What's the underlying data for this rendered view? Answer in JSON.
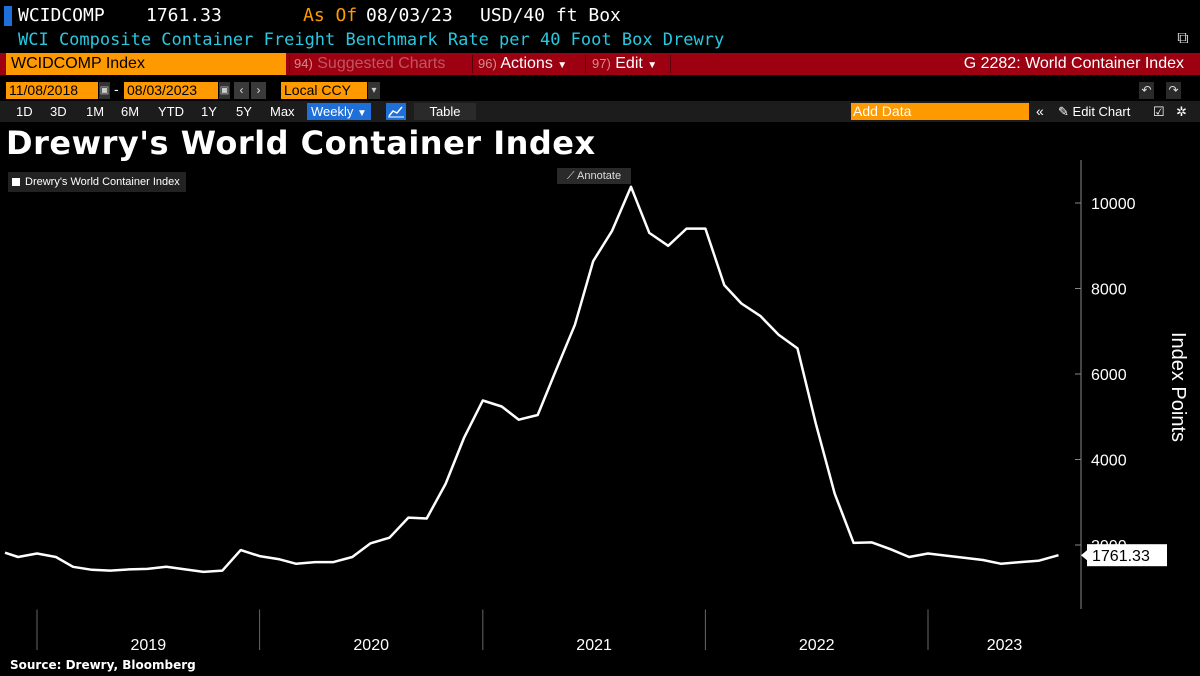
{
  "header": {
    "ticker": "WCIDCOMP",
    "price": "1761.33",
    "as_of_label": "As Of",
    "as_of_date": "08/03/23",
    "unit": "USD/40 ft Box",
    "description": "WCI Composite Container Freight Benchmark Rate per 40 Foot Box Drewry"
  },
  "commandbar": {
    "ticker_field": "WCIDCOMP Index",
    "suggested_num": "94)",
    "suggested_label": "Suggested Charts",
    "actions_num": "96)",
    "actions_label": "Actions",
    "edit_num": "97)",
    "edit_label": "Edit",
    "function_label": "G 2282: World Container Index"
  },
  "range": {
    "start_date": "11/08/2018",
    "dash": "-",
    "end_date": "08/03/2023",
    "currency": "Local CCY"
  },
  "toolbar": {
    "periods": [
      "1D",
      "3D",
      "1M",
      "6M",
      "YTD",
      "1Y",
      "5Y",
      "Max"
    ],
    "frequency": "Weekly",
    "table_label": "Table",
    "add_data_placeholder": "Add Data",
    "edit_chart_label": "Edit Chart"
  },
  "chart": {
    "title": "Drewry's World Container Index",
    "legend": "Drewry's World Container Index",
    "annotate_label": "Annotate",
    "last_value_label": "1761.33",
    "source": "Source: Drewry, Bloomberg",
    "line_color": "#ffffff"
  },
  "chart_data": {
    "type": "line",
    "title": "Drewry's World Container Index",
    "ylabel": "Index Points",
    "xlabel": "",
    "ylim": [
      500,
      10700
    ],
    "yticks": [
      2000,
      4000,
      6000,
      8000,
      10000
    ],
    "x_tick_labels": [
      "2019",
      "2020",
      "2021",
      "2022",
      "2023"
    ],
    "grid": false,
    "legend_position": "top-left",
    "series": [
      {
        "name": "Drewry's World Container Index",
        "x": [
          "2018-11-08",
          "2018-12-01",
          "2019-01-01",
          "2019-02-01",
          "2019-03-01",
          "2019-04-01",
          "2019-05-01",
          "2019-06-01",
          "2019-07-01",
          "2019-08-01",
          "2019-09-01",
          "2019-10-01",
          "2019-11-01",
          "2019-12-01",
          "2020-01-01",
          "2020-02-01",
          "2020-03-01",
          "2020-04-01",
          "2020-05-01",
          "2020-06-01",
          "2020-07-01",
          "2020-08-01",
          "2020-09-01",
          "2020-10-01",
          "2020-11-01",
          "2020-12-01",
          "2021-01-01",
          "2021-02-01",
          "2021-03-01",
          "2021-04-01",
          "2021-05-01",
          "2021-06-01",
          "2021-07-01",
          "2021-08-01",
          "2021-09-01",
          "2021-10-01",
          "2021-11-01",
          "2021-12-01",
          "2022-01-01",
          "2022-02-01",
          "2022-03-01",
          "2022-04-01",
          "2022-05-01",
          "2022-06-01",
          "2022-07-01",
          "2022-08-01",
          "2022-09-01",
          "2022-10-01",
          "2022-11-01",
          "2022-12-01",
          "2023-01-01",
          "2023-02-01",
          "2023-03-01",
          "2023-04-01",
          "2023-05-01",
          "2023-06-01",
          "2023-07-01",
          "2023-08-03"
        ],
        "values": [
          1820,
          1720,
          1800,
          1720,
          1490,
          1420,
          1400,
          1430,
          1440,
          1490,
          1430,
          1370,
          1400,
          1880,
          1740,
          1670,
          1560,
          1600,
          1600,
          1720,
          2040,
          2170,
          2640,
          2620,
          3430,
          4500,
          5380,
          5240,
          4930,
          5040,
          6090,
          7150,
          8640,
          9350,
          10380,
          9300,
          9000,
          9400,
          9400,
          8080,
          7650,
          7360,
          6920,
          6600,
          4840,
          3200,
          2050,
          2060,
          1900,
          1720,
          1800,
          1750,
          1700,
          1650,
          1560,
          1600,
          1630,
          1761.33
        ]
      }
    ]
  }
}
